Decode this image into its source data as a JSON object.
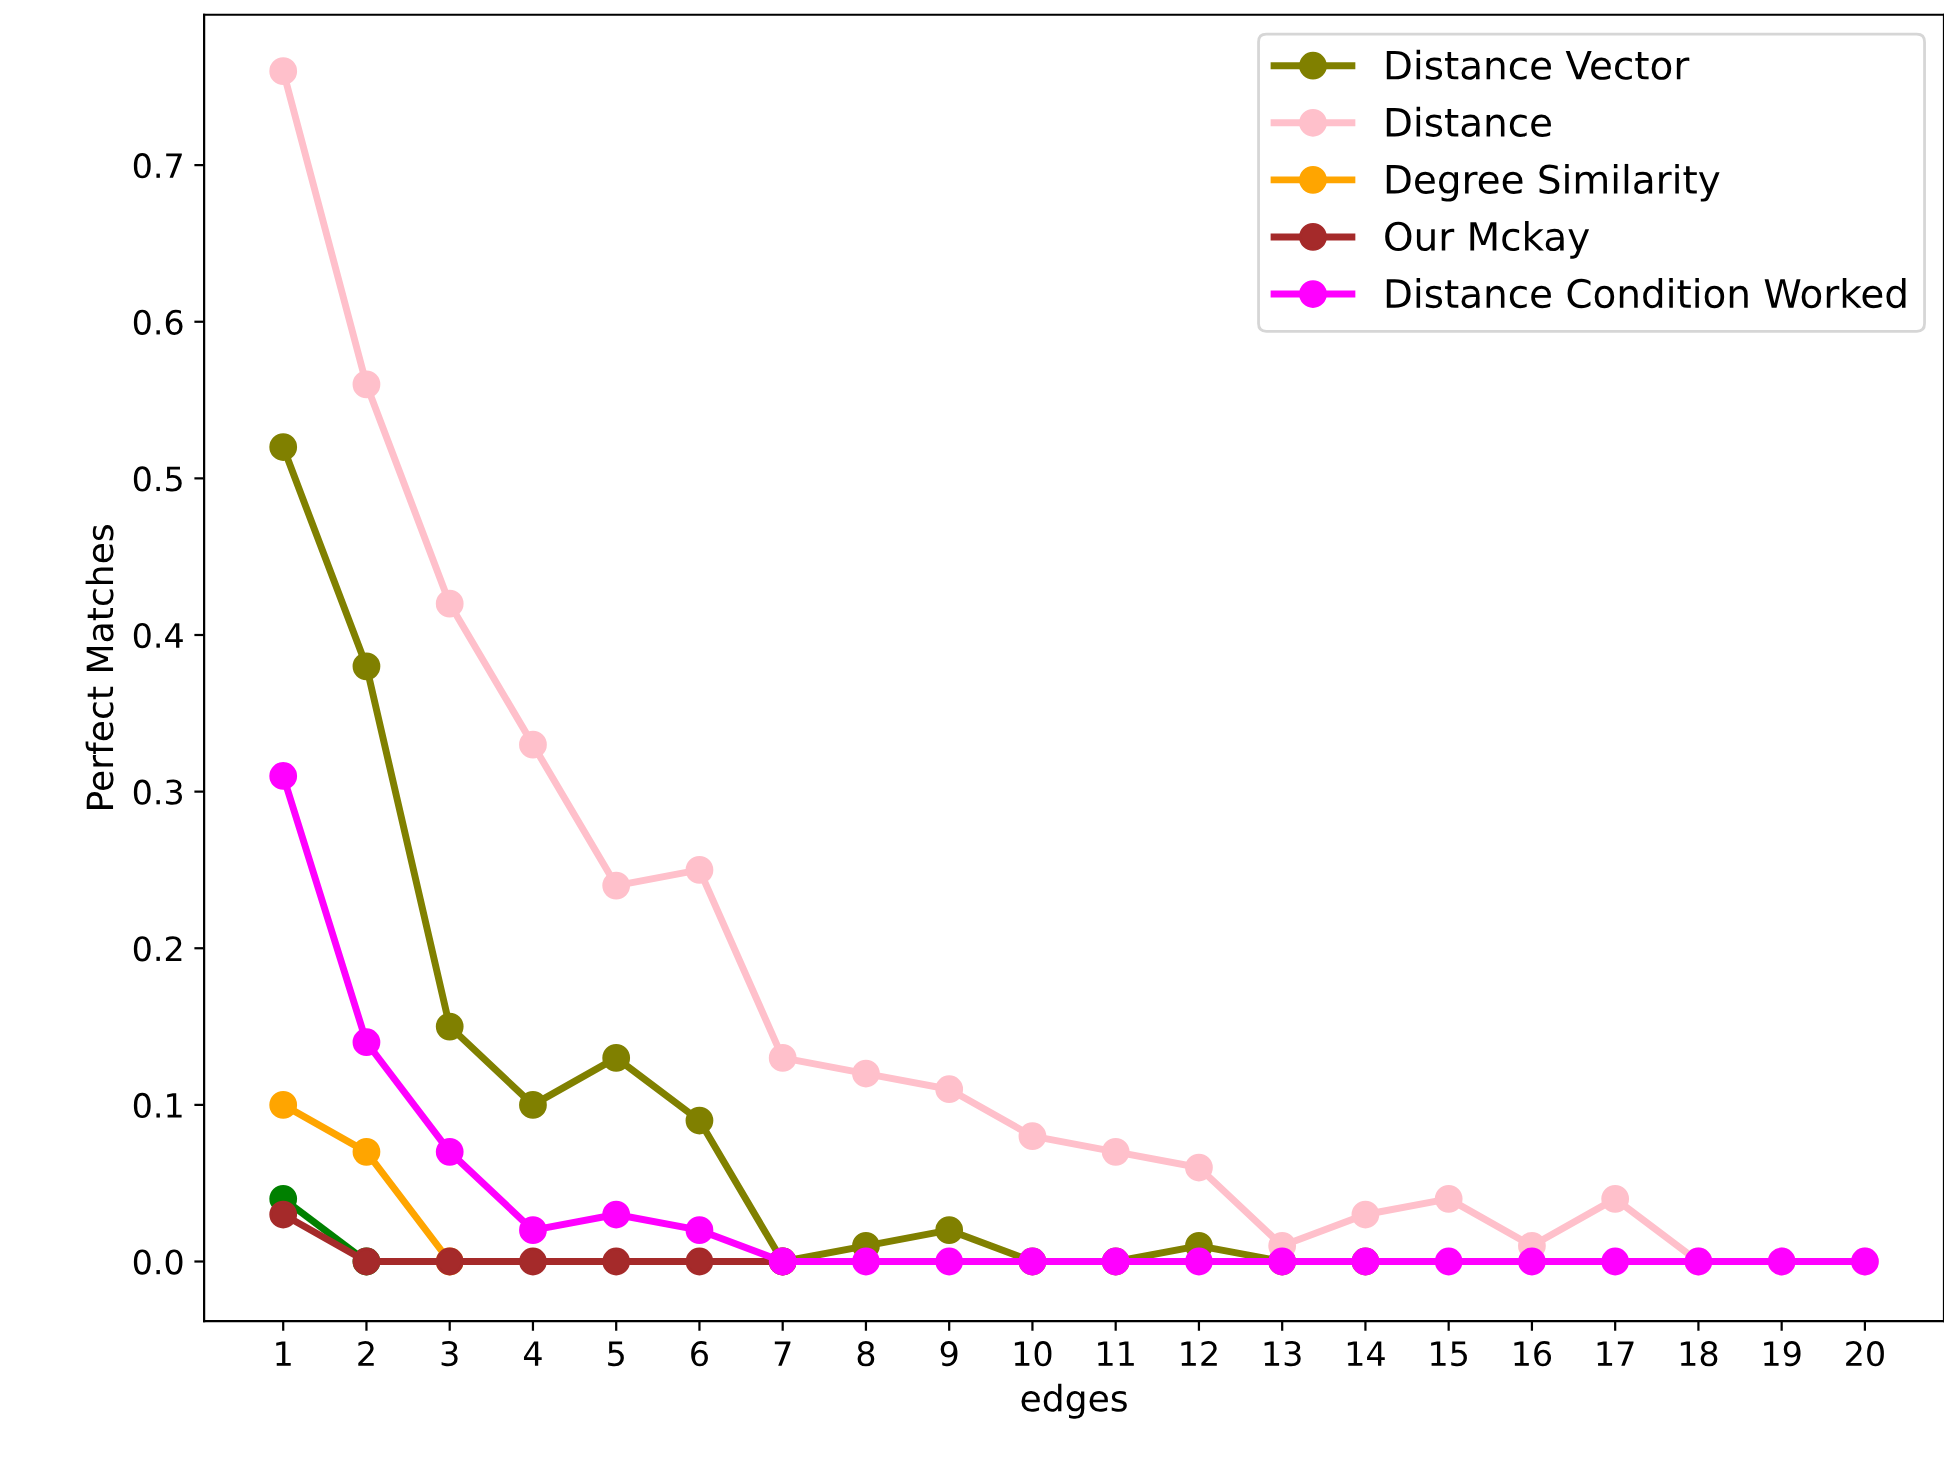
{
  "chart_data": {
    "type": "line",
    "xlabel": "edges",
    "ylabel": "Perfect Matches",
    "x": [
      1,
      2,
      3,
      4,
      5,
      6,
      7,
      8,
      9,
      10,
      11,
      12,
      13,
      14,
      15,
      16,
      17,
      18,
      19,
      20
    ],
    "series": [
      {
        "name": "Distance Vector",
        "color": "#808000",
        "values": [
          0.52,
          0.38,
          0.15,
          0.1,
          0.13,
          0.09,
          0,
          0.01,
          0.02,
          0,
          0,
          0.01,
          0,
          0,
          null,
          null,
          null,
          null,
          null,
          null
        ]
      },
      {
        "name": "Distance",
        "color": "#ffc0cb",
        "values": [
          0.76,
          0.56,
          0.42,
          0.33,
          0.24,
          0.25,
          0.13,
          0.12,
          0.11,
          0.08,
          0.07,
          0.06,
          0.01,
          0.03,
          0.04,
          0.01,
          0.04,
          0,
          0,
          0
        ]
      },
      {
        "name": "Degree Similarity",
        "color": "#ffa500",
        "values": [
          0.1,
          0.07,
          0,
          null,
          null,
          null,
          null,
          null,
          null,
          null,
          null,
          null,
          null,
          null,
          null,
          null,
          null,
          null,
          null,
          null
        ]
      },
      {
        "color": "#008000",
        "values": [
          0.04,
          0,
          null,
          null,
          null,
          null,
          null,
          null,
          null,
          null,
          null,
          null,
          null,
          null,
          null,
          null,
          null,
          null,
          null,
          null
        ]
      },
      {
        "name": "Our Mckay",
        "color": "#a52a2a",
        "values": [
          0.03,
          0,
          0,
          0,
          0,
          0,
          0,
          null,
          null,
          null,
          null,
          null,
          null,
          null,
          null,
          null,
          null,
          null,
          null,
          null
        ]
      },
      {
        "name": "Distance Condition Worked",
        "color": "#ff00ff",
        "values": [
          0.31,
          0.14,
          0.07,
          0.02,
          0.03,
          0.02,
          0,
          0,
          0,
          0,
          0,
          0,
          0,
          0,
          0,
          0,
          0,
          0,
          0,
          0
        ]
      }
    ],
    "xlim": [
      0.05,
      20.95
    ],
    "xticks": [
      1,
      2,
      3,
      4,
      5,
      6,
      7,
      8,
      9,
      10,
      11,
      12,
      13,
      14,
      15,
      16,
      17,
      18,
      19,
      20
    ],
    "ylim": [
      -0.038,
      0.796
    ],
    "yticks": [
      {
        "value": 0,
        "label": "0.0"
      },
      0.1,
      0.2,
      0.3,
      0.4,
      0.5,
      0.6,
      0.7
    ],
    "marker": "circle",
    "line_style": "solid",
    "grid": false,
    "legend": "top right"
  }
}
